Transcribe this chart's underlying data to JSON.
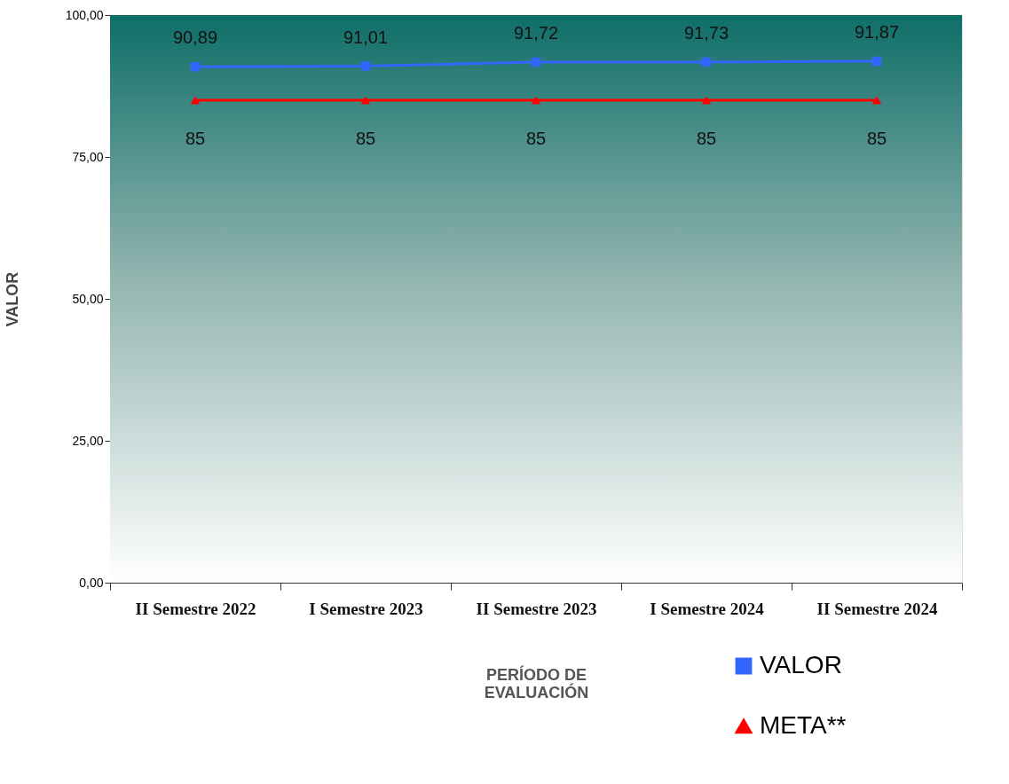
{
  "chart_data": {
    "type": "line",
    "categories": [
      "II Semestre 2022",
      "I Semestre 2023",
      "II Semestre 2023",
      "I Semestre 2024",
      "II Semestre 2024"
    ],
    "xlabel": "PERÍODO DE EVALUACIÓN",
    "ylabel": "VALOR",
    "ylim": [
      0,
      100
    ],
    "yticks": [
      {
        "value": 0,
        "label": "0,00"
      },
      {
        "value": 25,
        "label": "25,00"
      },
      {
        "value": 50,
        "label": "50,00"
      },
      {
        "value": 75,
        "label": "75,00"
      },
      {
        "value": 100,
        "label": "100,00"
      }
    ],
    "grid": false,
    "legend": "bottom right",
    "series": [
      {
        "name": "VALOR",
        "color": "#3366ff",
        "marker": "square",
        "values": [
          90.89,
          91.01,
          91.72,
          91.73,
          91.87
        ],
        "value_labels": [
          "90,89",
          "91,01",
          "91,72",
          "91,73",
          "91,87"
        ]
      },
      {
        "name": "META**",
        "color": "#ff0000",
        "marker": "triangle",
        "values": [
          85,
          85,
          85,
          85,
          85
        ],
        "value_labels": [
          "85",
          "85",
          "85",
          "85",
          "85"
        ]
      }
    ]
  }
}
